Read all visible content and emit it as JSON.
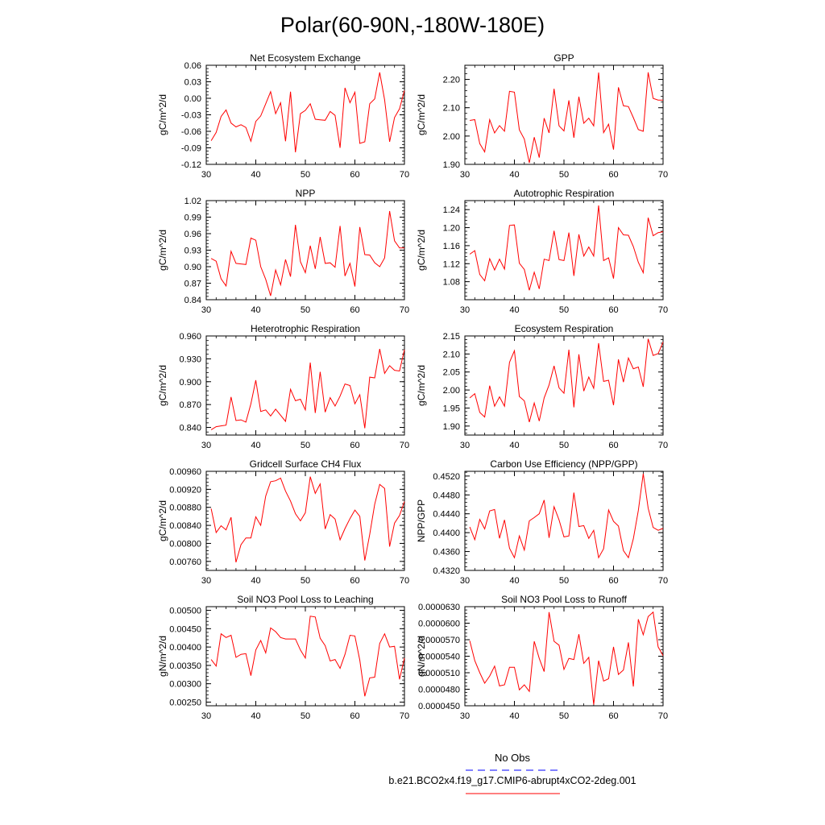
{
  "figure": {
    "title": "Polar(60-90N,-180W-180E)",
    "line_color": "#ff0000",
    "obs_color": "#0000ff"
  },
  "legend": {
    "obs_label": "No Obs",
    "model_label": "b.e21.BCO2x4.f19_g17.CMIP6-abrupt4xCO2-2deg.001"
  },
  "chart_data": [
    {
      "type": "line",
      "title": "Net Ecosystem Exchange",
      "ylabel": "gC/m^2/d",
      "xlim": [
        30,
        70
      ],
      "ylim": [
        -0.12,
        0.06
      ],
      "yticks": [
        -0.12,
        -0.09,
        -0.06,
        -0.03,
        0.0,
        0.03,
        0.06
      ],
      "ytick_labels": [
        "-0.12",
        "-0.09",
        "-0.06",
        "-0.03",
        "0.00",
        "0.03",
        "0.06"
      ],
      "xticks": [
        30,
        40,
        50,
        60,
        70
      ],
      "xtick_labels": [
        "30",
        "40",
        "50",
        "60",
        "70"
      ],
      "x": [
        31,
        32,
        33,
        34,
        35,
        36,
        37,
        38,
        39,
        40,
        41,
        42,
        43,
        44,
        45,
        46,
        47,
        48,
        49,
        50,
        51,
        52,
        53,
        54,
        55,
        56,
        57,
        58,
        59,
        60,
        61,
        62,
        63,
        64,
        65,
        66,
        67,
        68,
        69,
        70
      ],
      "y": [
        -0.077,
        -0.062,
        -0.033,
        -0.021,
        -0.045,
        -0.052,
        -0.048,
        -0.053,
        -0.078,
        -0.042,
        -0.032,
        -0.01,
        0.012,
        -0.028,
        -0.008,
        -0.078,
        0.012,
        -0.098,
        -0.028,
        -0.022,
        -0.01,
        -0.038,
        -0.039,
        -0.04,
        -0.024,
        -0.031,
        -0.09,
        0.019,
        -0.008,
        0.011,
        -0.082,
        -0.079,
        -0.01,
        -0.001,
        0.047,
        -0.003,
        -0.079,
        -0.035,
        -0.019,
        0.014
      ]
    },
    {
      "type": "line",
      "title": "GPP",
      "ylabel": "gC/m^2/d",
      "xlim": [
        30,
        70
      ],
      "ylim": [
        1.9,
        2.25
      ],
      "yticks": [
        1.9,
        2.0,
        2.1,
        2.2
      ],
      "ytick_labels": [
        "1.90",
        "2.00",
        "2.10",
        "2.20"
      ],
      "xticks": [
        30,
        40,
        50,
        60,
        70
      ],
      "xtick_labels": [
        "30",
        "40",
        "50",
        "60",
        "70"
      ],
      "x": [
        31,
        32,
        33,
        34,
        35,
        36,
        37,
        38,
        39,
        40,
        41,
        42,
        43,
        44,
        45,
        46,
        47,
        48,
        49,
        50,
        51,
        52,
        53,
        54,
        55,
        56,
        57,
        58,
        59,
        60,
        61,
        62,
        63,
        64,
        65,
        66,
        67,
        68,
        69,
        70
      ],
      "y": [
        2.055,
        2.058,
        1.973,
        1.944,
        2.058,
        2.011,
        2.037,
        2.017,
        2.158,
        2.155,
        2.022,
        1.989,
        1.905,
        1.996,
        1.924,
        2.063,
        2.011,
        2.167,
        2.036,
        2.018,
        2.126,
        1.994,
        2.139,
        2.045,
        2.063,
        2.036,
        2.224,
        2.012,
        2.042,
        1.952,
        2.172,
        2.107,
        2.104,
        2.065,
        2.023,
        2.017,
        2.225,
        2.133,
        2.127,
        2.127
      ]
    },
    {
      "type": "line",
      "title": "NPP",
      "ylabel": "gC/m^2/d",
      "xlim": [
        30,
        70
      ],
      "ylim": [
        0.84,
        1.02
      ],
      "yticks": [
        0.84,
        0.87,
        0.9,
        0.93,
        0.96,
        0.99,
        1.02
      ],
      "ytick_labels": [
        "0.84",
        "0.87",
        "0.90",
        "0.93",
        "0.96",
        "0.99",
        "1.02"
      ],
      "xticks": [
        30,
        40,
        50,
        60,
        70
      ],
      "xtick_labels": [
        "30",
        "40",
        "50",
        "60",
        "70"
      ],
      "x": [
        31,
        32,
        33,
        34,
        35,
        36,
        37,
        38,
        39,
        40,
        41,
        42,
        43,
        44,
        45,
        46,
        47,
        48,
        49,
        50,
        51,
        52,
        53,
        54,
        55,
        56,
        57,
        58,
        59,
        60,
        61,
        62,
        63,
        64,
        65,
        66,
        67,
        68,
        69,
        70
      ],
      "y": [
        0.915,
        0.91,
        0.878,
        0.865,
        0.928,
        0.906,
        0.905,
        0.904,
        0.952,
        0.948,
        0.9,
        0.877,
        0.847,
        0.894,
        0.867,
        0.913,
        0.882,
        0.976,
        0.909,
        0.889,
        0.938,
        0.896,
        0.954,
        0.906,
        0.907,
        0.899,
        0.974,
        0.883,
        0.906,
        0.864,
        0.972,
        0.922,
        0.921,
        0.907,
        0.9,
        0.916,
        1.001,
        0.947,
        0.934,
        0.934
      ]
    },
    {
      "type": "line",
      "title": "Autotrophic Respiration",
      "ylabel": "gC/m^2/d",
      "xlim": [
        30,
        70
      ],
      "ylim": [
        1.04,
        1.26
      ],
      "yticks": [
        1.08,
        1.12,
        1.16,
        1.2,
        1.24
      ],
      "ytick_labels": [
        "1.08",
        "1.12",
        "1.16",
        "1.20",
        "1.24"
      ],
      "xticks": [
        30,
        40,
        50,
        60,
        70
      ],
      "xtick_labels": [
        "30",
        "40",
        "50",
        "60",
        "70"
      ],
      "x": [
        31,
        32,
        33,
        34,
        35,
        36,
        37,
        38,
        39,
        40,
        41,
        42,
        43,
        44,
        45,
        46,
        47,
        48,
        49,
        50,
        51,
        52,
        53,
        54,
        55,
        56,
        57,
        58,
        59,
        60,
        61,
        62,
        63,
        64,
        65,
        66,
        67,
        68,
        69,
        70
      ],
      "y": [
        1.141,
        1.149,
        1.096,
        1.082,
        1.131,
        1.106,
        1.13,
        1.108,
        1.205,
        1.206,
        1.121,
        1.107,
        1.061,
        1.101,
        1.064,
        1.13,
        1.127,
        1.193,
        1.129,
        1.127,
        1.189,
        1.093,
        1.185,
        1.137,
        1.157,
        1.137,
        1.249,
        1.127,
        1.133,
        1.087,
        1.2,
        1.184,
        1.183,
        1.158,
        1.123,
        1.1,
        1.222,
        1.182,
        1.189,
        1.191
      ]
    },
    {
      "type": "line",
      "title": "Heterotrophic Respiration",
      "ylabel": "gC/m^2/d",
      "xlim": [
        30,
        70
      ],
      "ylim": [
        0.83,
        0.96
      ],
      "yticks": [
        0.84,
        0.87,
        0.9,
        0.93,
        0.96
      ],
      "ytick_labels": [
        "0.840",
        "0.870",
        "0.900",
        "0.930",
        "0.960"
      ],
      "xticks": [
        30,
        40,
        50,
        60,
        70
      ],
      "xtick_labels": [
        "30",
        "40",
        "50",
        "60",
        "70"
      ],
      "x": [
        31,
        32,
        33,
        34,
        35,
        36,
        37,
        38,
        39,
        40,
        41,
        42,
        43,
        44,
        45,
        46,
        47,
        48,
        49,
        50,
        51,
        52,
        53,
        54,
        55,
        56,
        57,
        58,
        59,
        60,
        61,
        62,
        63,
        64,
        65,
        66,
        67,
        68,
        69,
        70
      ],
      "y": [
        0.837,
        0.841,
        0.842,
        0.843,
        0.88,
        0.849,
        0.85,
        0.847,
        0.871,
        0.902,
        0.861,
        0.863,
        0.855,
        0.864,
        0.856,
        0.848,
        0.89,
        0.875,
        0.877,
        0.863,
        0.925,
        0.859,
        0.913,
        0.86,
        0.879,
        0.868,
        0.881,
        0.897,
        0.895,
        0.871,
        0.883,
        0.839,
        0.906,
        0.905,
        0.943,
        0.911,
        0.921,
        0.915,
        0.914,
        0.942
      ]
    },
    {
      "type": "line",
      "title": "Ecosystem Respiration",
      "ylabel": "gC/m^2/d",
      "xlim": [
        30,
        70
      ],
      "ylim": [
        1.875,
        2.15
      ],
      "yticks": [
        1.9,
        1.95,
        2.0,
        2.05,
        2.1,
        2.15
      ],
      "ytick_labels": [
        "1.90",
        "1.95",
        "2.00",
        "2.05",
        "2.10",
        "2.15"
      ],
      "xticks": [
        30,
        40,
        50,
        60,
        70
      ],
      "xtick_labels": [
        "30",
        "40",
        "50",
        "60",
        "70"
      ],
      "x": [
        31,
        32,
        33,
        34,
        35,
        36,
        37,
        38,
        39,
        40,
        41,
        42,
        43,
        44,
        45,
        46,
        47,
        48,
        49,
        50,
        51,
        52,
        53,
        54,
        55,
        56,
        57,
        58,
        59,
        60,
        61,
        62,
        63,
        64,
        65,
        66,
        67,
        68,
        69,
        70
      ],
      "y": [
        1.978,
        1.99,
        1.938,
        1.925,
        2.012,
        1.955,
        1.981,
        1.955,
        2.077,
        2.109,
        1.982,
        1.97,
        1.911,
        1.964,
        1.914,
        1.978,
        2.014,
        2.067,
        2.006,
        1.991,
        2.112,
        1.952,
        2.099,
        1.997,
        2.036,
        2.005,
        2.13,
        2.024,
        2.027,
        1.958,
        2.085,
        2.022,
        2.089,
        2.059,
        2.064,
        2.009,
        2.142,
        2.096,
        2.101,
        2.133
      ]
    },
    {
      "type": "line",
      "title": "Gridcell Surface CH4 Flux",
      "ylabel": "gC/m^2/d",
      "xlim": [
        30,
        70
      ],
      "ylim": [
        0.0074,
        0.0096
      ],
      "yticks": [
        0.0076,
        0.008,
        0.0084,
        0.0088,
        0.0092,
        0.0096
      ],
      "ytick_labels": [
        "0.00760",
        "0.00800",
        "0.00840",
        "0.00880",
        "0.00920",
        "0.00960"
      ],
      "xticks": [
        30,
        40,
        50,
        60,
        70
      ],
      "xtick_labels": [
        "30",
        "40",
        "50",
        "60",
        "70"
      ],
      "x": [
        31,
        32,
        33,
        34,
        35,
        36,
        37,
        38,
        39,
        40,
        41,
        42,
        43,
        44,
        45,
        46,
        47,
        48,
        49,
        50,
        51,
        52,
        53,
        54,
        55,
        56,
        57,
        58,
        59,
        60,
        61,
        62,
        63,
        64,
        65,
        66,
        67,
        68,
        69,
        70
      ],
      "y": [
        0.00877,
        0.00824,
        0.00839,
        0.0083,
        0.00858,
        0.00758,
        0.00797,
        0.00812,
        0.00812,
        0.00859,
        0.0084,
        0.00905,
        0.00937,
        0.00939,
        0.00945,
        0.00916,
        0.00894,
        0.00866,
        0.0085,
        0.00868,
        0.00948,
        0.00911,
        0.00932,
        0.00832,
        0.00864,
        0.00854,
        0.00808,
        0.00833,
        0.00855,
        0.00874,
        0.0086,
        0.00762,
        0.0082,
        0.00887,
        0.00931,
        0.00922,
        0.00793,
        0.00845,
        0.00862,
        0.00893
      ]
    },
    {
      "type": "line",
      "title": "Carbon Use Efficiency (NPP/GPP)",
      "ylabel": "NPP/GPP",
      "xlim": [
        30,
        70
      ],
      "ylim": [
        0.432,
        0.453
      ],
      "yticks": [
        0.432,
        0.436,
        0.44,
        0.444,
        0.448,
        0.452
      ],
      "ytick_labels": [
        "0.4320",
        "0.4360",
        "0.4400",
        "0.4440",
        "0.4480",
        "0.4520"
      ],
      "xticks": [
        30,
        40,
        50,
        60,
        70
      ],
      "xtick_labels": [
        "30",
        "40",
        "50",
        "60",
        "70"
      ],
      "x": [
        31,
        32,
        33,
        34,
        35,
        36,
        37,
        38,
        39,
        40,
        41,
        42,
        43,
        44,
        45,
        46,
        47,
        48,
        49,
        50,
        51,
        52,
        53,
        54,
        55,
        56,
        57,
        58,
        59,
        60,
        61,
        62,
        63,
        64,
        65,
        66,
        67,
        68,
        69,
        70
      ],
      "y": [
        0.4412,
        0.4385,
        0.4428,
        0.4408,
        0.4446,
        0.4449,
        0.4388,
        0.4427,
        0.4367,
        0.4347,
        0.4393,
        0.4363,
        0.4425,
        0.4432,
        0.444,
        0.4469,
        0.4389,
        0.4455,
        0.4427,
        0.4391,
        0.4393,
        0.4485,
        0.4413,
        0.4415,
        0.4388,
        0.4405,
        0.4347,
        0.4366,
        0.4448,
        0.4424,
        0.4414,
        0.4362,
        0.4347,
        0.4387,
        0.4447,
        0.4525,
        0.4452,
        0.4411,
        0.4405,
        0.4409
      ]
    },
    {
      "type": "line",
      "title": "Soil NO3 Pool Loss to Leaching",
      "ylabel": "gN/m^2/d",
      "xlim": [
        30,
        70
      ],
      "ylim": [
        0.0024,
        0.0051
      ],
      "yticks": [
        0.0025,
        0.003,
        0.0035,
        0.004,
        0.0045,
        0.005
      ],
      "ytick_labels": [
        "0.00250",
        "0.00300",
        "0.00350",
        "0.00400",
        "0.00450",
        "0.00500"
      ],
      "xticks": [
        30,
        40,
        50,
        60,
        70
      ],
      "xtick_labels": [
        "30",
        "40",
        "50",
        "60",
        "70"
      ],
      "x": [
        31,
        32,
        33,
        34,
        35,
        36,
        37,
        38,
        39,
        40,
        41,
        42,
        43,
        44,
        45,
        46,
        47,
        48,
        49,
        50,
        51,
        52,
        53,
        54,
        55,
        56,
        57,
        58,
        59,
        60,
        61,
        62,
        63,
        64,
        65,
        66,
        67,
        68,
        69,
        70
      ],
      "y": [
        0.00366,
        0.00348,
        0.00436,
        0.00426,
        0.00432,
        0.00372,
        0.0038,
        0.00382,
        0.00322,
        0.00392,
        0.00418,
        0.00384,
        0.00452,
        0.00442,
        0.00426,
        0.00422,
        0.00422,
        0.00422,
        0.00392,
        0.0037,
        0.00484,
        0.00482,
        0.00424,
        0.00404,
        0.00362,
        0.00366,
        0.00342,
        0.0038,
        0.00432,
        0.0043,
        0.00364,
        0.00266,
        0.00316,
        0.00318,
        0.0041,
        0.00436,
        0.004,
        0.00402,
        0.00312,
        0.0037
      ]
    },
    {
      "type": "line",
      "title": "Soil NO3 Pool Loss to Runoff",
      "ylabel": "gN/m^2/d",
      "xlim": [
        30,
        70
      ],
      "ylim": [
        4.5e-05,
        6.3e-05
      ],
      "yticks": [
        4.5e-05,
        4.8e-05,
        5.1e-05,
        5.4e-05,
        5.7e-05,
        6e-05,
        6.3e-05
      ],
      "ytick_labels": [
        "0.0000450",
        "0.0000480",
        "0.0000510",
        "0.0000540",
        "0.0000570",
        "0.0000600",
        "0.0000630"
      ],
      "xticks": [
        30,
        40,
        50,
        60,
        70
      ],
      "xtick_labels": [
        "30",
        "40",
        "50",
        "60",
        "70"
      ],
      "x": [
        31,
        32,
        33,
        34,
        35,
        36,
        37,
        38,
        39,
        40,
        41,
        42,
        43,
        44,
        45,
        46,
        47,
        48,
        49,
        50,
        51,
        52,
        53,
        54,
        55,
        56,
        57,
        58,
        59,
        60,
        61,
        62,
        63,
        64,
        65,
        66,
        67,
        68,
        69,
        70
      ],
      "y": [
        5.68e-05,
        5.32e-05,
        5.1e-05,
        4.91e-05,
        5.04e-05,
        5.22e-05,
        4.86e-05,
        4.88e-05,
        5.2e-05,
        5.2e-05,
        4.79e-05,
        4.88e-05,
        4.76e-05,
        5.67e-05,
        5.36e-05,
        5.12e-05,
        6.2e-05,
        5.67e-05,
        5.6e-05,
        5.16e-05,
        5.36e-05,
        5.34e-05,
        5.8e-05,
        5.27e-05,
        5.38e-05,
        4.52e-05,
        5.32e-05,
        4.95e-05,
        4.99e-05,
        5.57e-05,
        5.07e-05,
        5.15e-05,
        5.65e-05,
        4.85e-05,
        6.07e-05,
        5.79e-05,
        6.12e-05,
        6.2e-05,
        5.57e-05,
        5.41e-05
      ]
    }
  ]
}
